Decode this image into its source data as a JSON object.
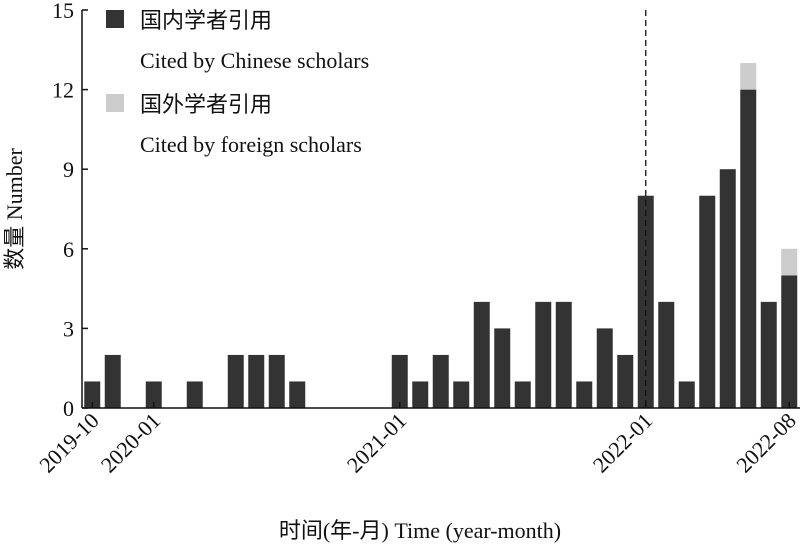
{
  "chart_data": {
    "type": "stacked-bar",
    "categories": [
      "2019-10",
      null,
      null,
      "2020-01",
      null,
      null,
      null,
      null,
      null,
      null,
      null,
      null,
      null,
      null,
      null,
      "2021-01",
      null,
      null,
      null,
      null,
      null,
      null,
      null,
      null,
      null,
      null,
      null,
      "2022-01",
      null,
      null,
      null,
      null,
      null,
      null,
      "2022-08"
    ],
    "series": [
      {
        "name": "国内学者引用",
        "name_en": "Cited by Chinese scholars",
        "color": "#333333",
        "values": [
          1,
          2,
          0,
          1,
          0,
          1,
          0,
          2,
          2,
          2,
          1,
          0,
          0,
          0,
          0,
          2,
          1,
          2,
          1,
          4,
          3,
          1,
          4,
          4,
          1,
          3,
          2,
          8,
          4,
          1,
          8,
          9,
          12,
          4,
          5
        ]
      },
      {
        "name": "国外学者引用",
        "name_en": "Cited by foreign scholars",
        "color": "#cccccc",
        "values": [
          0,
          0,
          0,
          0,
          0,
          0,
          0,
          0,
          0,
          0,
          0,
          0,
          0,
          0,
          0,
          0,
          0,
          0,
          0,
          0,
          0,
          0,
          0,
          0,
          0,
          0,
          0,
          0,
          0,
          0,
          0,
          0,
          1,
          0,
          1
        ]
      }
    ],
    "ylim": [
      0,
      15
    ],
    "yticks": [
      0,
      3,
      6,
      9,
      12,
      15
    ],
    "ylabel": "数量 Number",
    "xlabel": "时间(年-月) Time (year-month)"
  }
}
